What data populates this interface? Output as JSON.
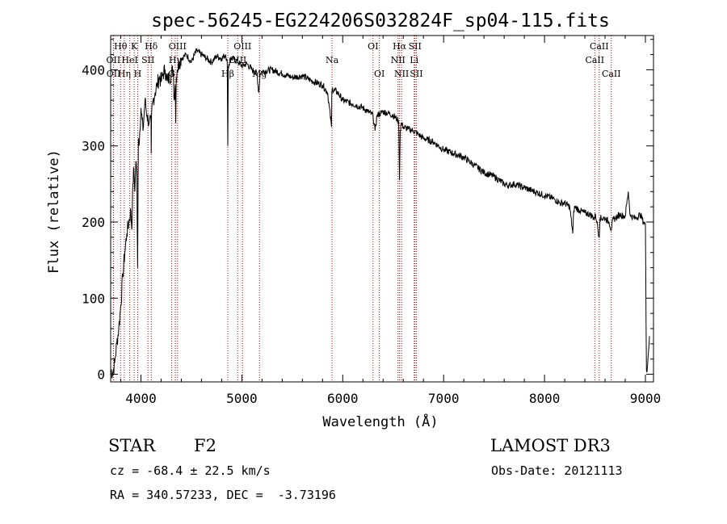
{
  "chart_data": {
    "type": "line",
    "title": "spec-56245-EG224206S032824F_sp04-115.fits",
    "xlabel": "Wavelength (Å)",
    "ylabel": "Flux (relative)",
    "xlim": [
      3700,
      9080
    ],
    "ylim": [
      -10,
      445
    ],
    "xticks": [
      4000,
      5000,
      6000,
      7000,
      8000,
      9000
    ],
    "yticks": [
      0,
      100,
      200,
      300,
      400
    ],
    "series": [
      {
        "name": "spectrum",
        "x": [
          3700,
          3720,
          3740,
          3760,
          3780,
          3800,
          3820,
          3840,
          3860,
          3880,
          3900,
          3910,
          3920,
          3930,
          3940,
          3950,
          3960,
          3967,
          3970,
          3975,
          3980,
          4000,
          4020,
          4040,
          4060,
          4080,
          4100,
          4102,
          4105,
          4120,
          4140,
          4160,
          4180,
          4200,
          4220,
          4240,
          4260,
          4280,
          4300,
          4320,
          4330,
          4340,
          4345,
          4350,
          4360,
          4380,
          4400,
          4450,
          4500,
          4550,
          4600,
          4650,
          4700,
          4750,
          4800,
          4840,
          4855,
          4861,
          4866,
          4880,
          4900,
          4950,
          5000,
          5050,
          5100,
          5150,
          5168,
          5175,
          5180,
          5200,
          5300,
          5400,
          5500,
          5600,
          5700,
          5800,
          5850,
          5889,
          5892,
          5895,
          5950,
          6000,
          6100,
          6200,
          6250,
          6300,
          6320,
          6340,
          6400,
          6450,
          6500,
          6540,
          6555,
          6563,
          6570,
          6580,
          6600,
          6650,
          6700,
          6750,
          6800,
          6900,
          7000,
          7100,
          7200,
          7300,
          7400,
          7500,
          7600,
          7650,
          7700,
          7800,
          7900,
          8000,
          8100,
          8150,
          8200,
          8250,
          8280,
          8290,
          8300,
          8350,
          8400,
          8450,
          8498,
          8505,
          8520,
          8542,
          8550,
          8600,
          8640,
          8662,
          8670,
          8700,
          8750,
          8780,
          8800,
          8830,
          8850,
          8900,
          8950,
          8980,
          9000,
          9010,
          9020,
          9030,
          9040
        ],
        "values": [
          5,
          2,
          15,
          40,
          60,
          90,
          130,
          160,
          185,
          200,
          215,
          190,
          250,
          270,
          240,
          280,
          260,
          140,
          200,
          310,
          300,
          350,
          320,
          360,
          340,
          330,
          330,
          290,
          340,
          360,
          370,
          380,
          390,
          385,
          395,
          400,
          385,
          390,
          395,
          400,
          360,
          380,
          330,
          390,
          400,
          410,
          415,
          420,
          410,
          425,
          420,
          415,
          410,
          418,
          415,
          420,
          410,
          300,
          405,
          410,
          415,
          412,
          405,
          408,
          400,
          395,
          370,
          380,
          395,
          398,
          400,
          395,
          390,
          392,
          385,
          380,
          370,
          325,
          370,
          375,
          370,
          360,
          355,
          350,
          345,
          340,
          320,
          340,
          345,
          343,
          340,
          335,
          330,
          255,
          320,
          330,
          325,
          322,
          320,
          315,
          310,
          305,
          295,
          290,
          285,
          275,
          265,
          260,
          250,
          248,
          250,
          245,
          240,
          235,
          230,
          225,
          225,
          220,
          185,
          215,
          220,
          215,
          212,
          210,
          205,
          210,
          200,
          180,
          205,
          205,
          200,
          190,
          200,
          205,
          210,
          208,
          208,
          240,
          208,
          205,
          210,
          200,
          198,
          5,
          10,
          30,
          50
        ]
      }
    ],
    "spectral_lines": [
      {
        "name": "Hθ",
        "wavelength": 3798,
        "row": 1
      },
      {
        "name": "OII",
        "wavelength": 3727,
        "row": 2
      },
      {
        "name": "OII",
        "wavelength": 3729,
        "row": 3
      },
      {
        "name": "Hη",
        "wavelength": 3835,
        "row": 3
      },
      {
        "name": "HeI",
        "wavelength": 3889,
        "row": 2
      },
      {
        "name": "K",
        "wavelength": 3933,
        "row": 1
      },
      {
        "name": "H",
        "wavelength": 3968,
        "row": 3
      },
      {
        "name": "SII",
        "wavelength": 4070,
        "row": 2
      },
      {
        "name": "Hδ",
        "wavelength": 4102,
        "row": 1
      },
      {
        "name": "Hγ",
        "wavelength": 4340,
        "row": 2
      },
      {
        "name": "G",
        "wavelength": 4305,
        "row": 3
      },
      {
        "name": "OIII",
        "wavelength": 4363,
        "row": 1
      },
      {
        "name": "Hβ",
        "wavelength": 4861,
        "row": 3
      },
      {
        "name": "OIII",
        "wavelength": 4959,
        "row": 2
      },
      {
        "name": "OIII",
        "wavelength": 5007,
        "row": 1
      },
      {
        "name": "Mg",
        "wavelength": 5175,
        "row": 3
      },
      {
        "name": "Na",
        "wavelength": 5894,
        "row": 2
      },
      {
        "name": "OI",
        "wavelength": 6300,
        "row": 1
      },
      {
        "name": "OI",
        "wavelength": 6363,
        "row": 3
      },
      {
        "name": "NII",
        "wavelength": 6548,
        "row": 2
      },
      {
        "name": "Hα",
        "wavelength": 6563,
        "row": 1
      },
      {
        "name": "NII",
        "wavelength": 6583,
        "row": 3
      },
      {
        "name": "Li",
        "wavelength": 6708,
        "row": 2
      },
      {
        "name": "SII",
        "wavelength": 6716,
        "row": 1
      },
      {
        "name": "SII",
        "wavelength": 6730,
        "row": 3
      },
      {
        "name": "CaII",
        "wavelength": 8498,
        "row": 2
      },
      {
        "name": "CaII",
        "wavelength": 8542,
        "row": 1
      },
      {
        "name": "CaII",
        "wavelength": 8662,
        "row": 3
      }
    ]
  },
  "info": {
    "object_class": "STAR",
    "subclass": "F2",
    "survey": "LAMOST DR3",
    "cz": "cz = -68.4 ± 22.5 km/s",
    "obs_date": "Obs-Date: 20121113",
    "coords": "RA = 340.57233, DEC =  -3.73196"
  },
  "colors": {
    "spectrum": "#000000",
    "line_marker": "#c00000"
  }
}
